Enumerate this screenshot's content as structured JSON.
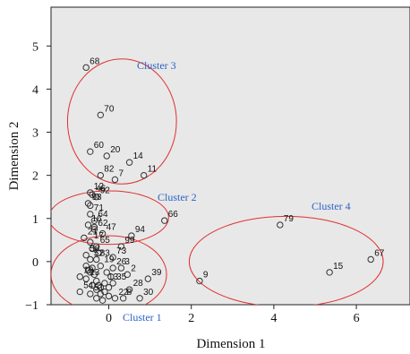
{
  "chart_data": {
    "type": "scatter",
    "xlabel": "Dimension 1",
    "ylabel": "Dimension 2",
    "xlim": [
      -1.4,
      7.3
    ],
    "ylim": [
      -1.0,
      5.9
    ],
    "xticks": [
      0,
      2,
      4,
      6
    ],
    "yticks": [
      -1,
      0,
      1,
      2,
      3,
      4,
      5
    ],
    "grid": false,
    "colors": {
      "plot_bg": "#e8e8e8",
      "ellipse": "#e03030",
      "cluster_label": "#2b62c9",
      "marker": "#333333"
    },
    "points": [
      {
        "label": "68",
        "x": -0.55,
        "y": 4.5
      },
      {
        "label": "70",
        "x": -0.2,
        "y": 3.4
      },
      {
        "label": "60",
        "x": -0.45,
        "y": 2.55
      },
      {
        "label": "20",
        "x": -0.05,
        "y": 2.45
      },
      {
        "label": "14",
        "x": 0.5,
        "y": 2.3
      },
      {
        "label": "82",
        "x": -0.2,
        "y": 2.0
      },
      {
        "label": "7",
        "x": 0.15,
        "y": 1.9
      },
      {
        "label": "11",
        "x": 0.85,
        "y": 2.0
      },
      {
        "label": "12",
        "x": -0.45,
        "y": 1.6
      },
      {
        "label": "46",
        "x": -0.4,
        "y": 1.55
      },
      {
        "label": "92",
        "x": -0.3,
        "y": 1.5
      },
      {
        "label": "98",
        "x": -0.5,
        "y": 1.35
      },
      {
        "label": "71",
        "x": -0.45,
        "y": 1.1
      },
      {
        "label": "64",
        "x": -0.35,
        "y": 0.95
      },
      {
        "label": "16",
        "x": -0.5,
        "y": 0.85
      },
      {
        "label": "94",
        "x": 0.55,
        "y": 0.6
      },
      {
        "label": "66",
        "x": 1.35,
        "y": 0.95
      },
      {
        "label": "62",
        "x": -0.35,
        "y": 0.75
      },
      {
        "label": "47",
        "x": -0.15,
        "y": 0.65
      },
      {
        "label": "21",
        "x": -0.6,
        "y": 0.55
      },
      {
        "label": "17",
        "x": -0.45,
        "y": 0.45
      },
      {
        "label": "65",
        "x": -0.3,
        "y": 0.35
      },
      {
        "label": "99",
        "x": 0.3,
        "y": 0.35
      },
      {
        "label": "58",
        "x": -0.55,
        "y": 0.15
      },
      {
        "label": "52",
        "x": -0.45,
        "y": 0.05
      },
      {
        "label": "83",
        "x": -0.3,
        "y": 0.05
      },
      {
        "label": "73",
        "x": 0.1,
        "y": 0.1
      },
      {
        "label": "19",
        "x": -0.2,
        "y": -0.1
      },
      {
        "label": "26",
        "x": 0.1,
        "y": -0.15
      },
      {
        "label": "3",
        "x": 0.3,
        "y": -0.15
      },
      {
        "label": "2",
        "x": 0.45,
        "y": -0.3
      },
      {
        "label": "39",
        "x": 0.95,
        "y": -0.4
      },
      {
        "label": "10",
        "x": -0.7,
        "y": -0.35
      },
      {
        "label": "23",
        "x": -0.55,
        "y": -0.4
      },
      {
        "label": "13",
        "x": -0.1,
        "y": -0.5
      },
      {
        "label": "35",
        "x": 0.1,
        "y": -0.5
      },
      {
        "label": "28",
        "x": 0.5,
        "y": -0.65
      },
      {
        "label": "54",
        "x": -0.7,
        "y": -0.7
      },
      {
        "label": "51",
        "x": -0.45,
        "y": -0.75
      },
      {
        "label": "22",
        "x": 0.15,
        "y": -0.85
      },
      {
        "label": "8",
        "x": 0.35,
        "y": -0.85
      },
      {
        "label": "30",
        "x": 0.75,
        "y": -0.85
      },
      {
        "label": "79",
        "x": 4.15,
        "y": 0.85
      },
      {
        "label": "15",
        "x": 5.35,
        "y": -0.25
      },
      {
        "label": "67",
        "x": 6.35,
        "y": 0.05
      },
      {
        "label": "9",
        "x": 2.2,
        "y": -0.45
      }
    ],
    "unlabeled_points": [
      [
        -0.55,
        -0.1
      ],
      [
        -0.5,
        -0.2
      ],
      [
        -0.45,
        -0.25
      ],
      [
        -0.4,
        -0.15
      ],
      [
        -0.35,
        -0.3
      ],
      [
        -0.3,
        -0.45
      ],
      [
        -0.25,
        -0.55
      ],
      [
        -0.2,
        -0.6
      ],
      [
        -0.4,
        -0.55
      ],
      [
        -0.3,
        -0.65
      ],
      [
        -0.2,
        -0.75
      ],
      [
        -0.1,
        -0.7
      ],
      [
        0.0,
        -0.8
      ],
      [
        -0.15,
        -0.9
      ],
      [
        -0.3,
        -0.85
      ],
      [
        0.05,
        -0.35
      ],
      [
        -0.05,
        -0.25
      ],
      [
        0.0,
        -0.6
      ],
      [
        -0.45,
        1.3
      ],
      [
        -0.35,
        0.8
      ],
      [
        -0.25,
        0.2
      ],
      [
        -0.4,
        0.3
      ]
    ],
    "clusters": [
      {
        "label": "Cluster 1",
        "cx": 0.0,
        "cy": -0.3,
        "rx": 1.4,
        "ry": 0.9
      },
      {
        "label": "Cluster 2",
        "cx": 0.0,
        "cy": 1.02,
        "rx": 1.45,
        "ry": 0.62
      },
      {
        "label": "Cluster 3",
        "cx": 0.32,
        "cy": 3.25,
        "rx": 1.32,
        "ry": 1.45
      },
      {
        "label": "Cluster 4",
        "cx": 4.3,
        "cy": 0.0,
        "rx": 2.35,
        "ry": 1.05
      }
    ]
  }
}
